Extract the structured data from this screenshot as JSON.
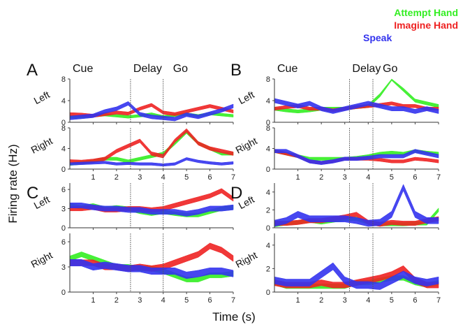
{
  "figure": {
    "xlabel": "Time (s)",
    "ylabel": "Firing rate (Hz)"
  },
  "legend": [
    {
      "label": "Attempt Hand",
      "color": "#33ee22"
    },
    {
      "label": "Imagine Hand",
      "color": "#ee2222"
    },
    {
      "label": "Speak",
      "color": "#3333ee"
    }
  ],
  "phase_labels": [
    "Cue",
    "Delay",
    "Go"
  ],
  "chart_data": [
    {
      "panel": "A",
      "type": "area",
      "xlim": [
        0,
        7
      ],
      "xticks": [
        1,
        2,
        3,
        4,
        5,
        6,
        7
      ],
      "phase_boundaries": [
        2.6,
        4
      ],
      "x": [
        0.0,
        0.5,
        1.0,
        1.5,
        2.0,
        2.5,
        3.0,
        3.5,
        4.0,
        4.5,
        5.0,
        5.5,
        6.0,
        6.5,
        7.0
      ],
      "rows": [
        {
          "label": "Left",
          "ylim": [
            0,
            8
          ],
          "yticks": [
            0,
            4,
            8
          ],
          "series": [
            {
              "name": "Attempt Hand",
              "values": [
                1,
                1,
                1.2,
                1.4,
                1.2,
                1,
                1.2,
                1.5,
                1,
                1.3,
                1.5,
                1.2,
                1.6,
                1.4,
                1.2
              ],
              "band": 0.5
            },
            {
              "name": "Imagine Hand",
              "values": [
                1.5,
                1.4,
                1.2,
                1.5,
                1.8,
                1.6,
                2.5,
                3.2,
                1.8,
                1.5,
                2,
                2.5,
                3,
                2.5,
                2
              ],
              "band": 0.6
            },
            {
              "name": "Speak",
              "values": [
                0.8,
                1,
                1.2,
                2,
                2.5,
                3.5,
                1.5,
                1,
                0.8,
                0.6,
                1.4,
                1,
                1.6,
                2.2,
                3
              ],
              "band": 0.7
            }
          ]
        },
        {
          "label": "Right",
          "ylim": [
            0,
            8
          ],
          "yticks": [
            0,
            4,
            8
          ],
          "series": [
            {
              "name": "Attempt Hand",
              "values": [
                1,
                1.2,
                1.5,
                2,
                2,
                1.5,
                2,
                2.5,
                3,
                5,
                7.2,
                5,
                4,
                3,
                3
              ],
              "band": 0.6
            },
            {
              "name": "Imagine Hand",
              "values": [
                1.5,
                1.4,
                1.6,
                2,
                3.5,
                4.5,
                5.5,
                3,
                2.5,
                5.5,
                7.5,
                5,
                4,
                3.5,
                3
              ],
              "band": 0.7
            },
            {
              "name": "Speak",
              "values": [
                1,
                1.1,
                1.2,
                1.3,
                1,
                1.1,
                1,
                1,
                0.8,
                1,
                2,
                1.5,
                1.2,
                1,
                1.2
              ],
              "band": 0.5
            }
          ]
        }
      ]
    },
    {
      "panel": "B",
      "type": "area",
      "xlim": [
        0,
        7
      ],
      "xticks": [
        1,
        2,
        3,
        4,
        5,
        6,
        7
      ],
      "phase_boundaries": [
        3.2,
        4.2
      ],
      "x": [
        0.0,
        0.5,
        1.0,
        1.5,
        2.0,
        2.5,
        3.0,
        3.5,
        4.0,
        4.5,
        5.0,
        5.5,
        6.0,
        6.5,
        7.0
      ],
      "rows": [
        {
          "label": "Left",
          "ylim": [
            0,
            8
          ],
          "yticks": [
            0,
            4,
            8
          ],
          "series": [
            {
              "name": "Attempt Hand",
              "values": [
                2.5,
                2.2,
                2.0,
                2.2,
                2.5,
                2.5,
                2.5,
                2.8,
                3,
                5,
                8,
                6,
                4,
                3.5,
                3
              ],
              "band": 0.6
            },
            {
              "name": "Imagine Hand",
              "values": [
                2.5,
                2.8,
                3,
                2.5,
                2.5,
                2.2,
                2.5,
                2.8,
                3,
                3.2,
                3.5,
                3,
                3,
                2.5,
                2.5
              ],
              "band": 0.6
            },
            {
              "name": "Speak",
              "values": [
                4,
                3.5,
                3,
                3.5,
                2.5,
                2,
                2.5,
                3,
                3.5,
                3,
                2.5,
                2.5,
                2,
                2.5,
                2
              ],
              "band": 0.8
            }
          ]
        },
        {
          "label": "Right",
          "ylim": [
            0,
            8
          ],
          "yticks": [
            0,
            4,
            8
          ],
          "series": [
            {
              "name": "Attempt Hand",
              "values": [
                3.5,
                3,
                2.5,
                2,
                2,
                2,
                2,
                2.2,
                2.5,
                3,
                3.2,
                3,
                3.5,
                3.2,
                3
              ],
              "band": 0.6
            },
            {
              "name": "Imagine Hand",
              "values": [
                3.5,
                3,
                2.5,
                1.5,
                1.2,
                1.5,
                2,
                2,
                2,
                1.8,
                1.5,
                1.5,
                2,
                1.8,
                1.5
              ],
              "band": 0.6
            },
            {
              "name": "Speak",
              "values": [
                3.5,
                3.5,
                2.5,
                1.5,
                1.2,
                1.5,
                2,
                2,
                2.2,
                2.5,
                2.5,
                2.5,
                3.5,
                3,
                2.5
              ],
              "band": 0.7
            }
          ]
        }
      ]
    },
    {
      "panel": "C",
      "type": "area",
      "xlim": [
        0,
        7
      ],
      "xticks": [
        1,
        2,
        3,
        4,
        5,
        6,
        7
      ],
      "phase_boundaries": [
        2.6,
        4
      ],
      "x": [
        0.0,
        0.5,
        1.0,
        1.5,
        2.0,
        2.5,
        3.0,
        3.5,
        4.0,
        4.5,
        5.0,
        5.5,
        6.0,
        6.5,
        7.0
      ],
      "rows": [
        {
          "label": "Left",
          "ylim": [
            0,
            7
          ],
          "yticks": [
            0,
            3,
            6
          ],
          "series": [
            {
              "name": "Attempt Hand",
              "values": [
                3.5,
                3.2,
                3.5,
                3.0,
                3.2,
                3,
                2.5,
                2.2,
                2.5,
                2.2,
                2,
                2,
                2.5,
                3,
                3.2
              ],
              "band": 0.6
            },
            {
              "name": "Imagine Hand",
              "values": [
                3,
                3,
                3.2,
                2.8,
                2.8,
                3,
                3,
                2.8,
                3,
                3.5,
                4,
                4.5,
                5,
                5.8,
                4.5
              ],
              "band": 0.7
            },
            {
              "name": "Speak",
              "values": [
                3.5,
                3.5,
                3.2,
                3,
                3,
                2.8,
                2.8,
                2.5,
                2.5,
                2.5,
                2.2,
                2.5,
                3,
                3,
                3.2
              ],
              "band": 0.8
            }
          ]
        },
        {
          "label": "Right",
          "ylim": [
            0,
            7
          ],
          "yticks": [
            0,
            3,
            6
          ],
          "series": [
            {
              "name": "Attempt Hand",
              "values": [
                4,
                4.5,
                4,
                3.5,
                3,
                3,
                2.8,
                2.8,
                2.5,
                2,
                1.5,
                1.5,
                2,
                2,
                2.2
              ],
              "band": 0.6
            },
            {
              "name": "Imagine Hand",
              "values": [
                3.5,
                3.5,
                3.5,
                3,
                3,
                2.8,
                3,
                2.8,
                3,
                3.5,
                4,
                4.5,
                5.5,
                5,
                4
              ],
              "band": 0.7
            },
            {
              "name": "Speak",
              "values": [
                3.5,
                3.5,
                3,
                3.2,
                3,
                2.8,
                2.8,
                2.5,
                2.5,
                2.5,
                2,
                2.2,
                2.5,
                2.5,
                2.2
              ],
              "band": 0.8
            }
          ]
        }
      ]
    },
    {
      "panel": "D",
      "type": "area",
      "xlim": [
        0,
        7
      ],
      "xticks": [
        1,
        2,
        3,
        4,
        5,
        6,
        7
      ],
      "phase_boundaries": [
        3.2,
        4.2
      ],
      "x": [
        0.0,
        0.5,
        1.0,
        1.5,
        2.0,
        2.5,
        3.0,
        3.5,
        4.0,
        4.5,
        5.0,
        5.5,
        6.0,
        6.5,
        7.0
      ],
      "rows": [
        {
          "label": "Left",
          "ylim": [
            0,
            5
          ],
          "yticks": [
            0,
            2,
            4
          ],
          "series": [
            {
              "name": "Attempt Hand",
              "values": [
                0.3,
                0.5,
                0.6,
                0.8,
                0.6,
                0.8,
                1,
                1,
                0.6,
                0.4,
                0.4,
                0.4,
                0.5,
                0.5,
                2
              ],
              "band": 0.4
            },
            {
              "name": "Imagine Hand",
              "values": [
                0.5,
                0.5,
                0.6,
                0.8,
                0.8,
                1,
                1.2,
                1.5,
                0.6,
                0.4,
                0.6,
                0.5,
                0.5,
                0.8,
                1
              ],
              "band": 0.5
            },
            {
              "name": "Speak",
              "values": [
                0.5,
                0.8,
                1.5,
                1,
                1,
                1,
                1,
                0.8,
                0.5,
                0.6,
                1.5,
                4.5,
                1.5,
                0.8,
                0.8
              ],
              "band": 0.7
            }
          ]
        },
        {
          "label": "Right",
          "ylim": [
            0,
            5
          ],
          "yticks": [
            0,
            2,
            4
          ],
          "series": [
            {
              "name": "Attempt Hand",
              "values": [
                0.8,
                0.5,
                0.5,
                0.5,
                0.5,
                0.5,
                0.5,
                0.8,
                0.8,
                1,
                1.2,
                1.2,
                0.8,
                0.6,
                0.8
              ],
              "band": 0.4
            },
            {
              "name": "Imagine Hand",
              "values": [
                0.8,
                0.6,
                0.6,
                0.6,
                0.8,
                0.6,
                0.6,
                0.8,
                1,
                1.2,
                1.5,
                2,
                1,
                0.6,
                0.6
              ],
              "band": 0.5
            },
            {
              "name": "Speak",
              "values": [
                1,
                0.8,
                0.8,
                0.8,
                1.5,
                2.2,
                1,
                0.6,
                0.6,
                0.5,
                1,
                1.5,
                1,
                0.8,
                1
              ],
              "band": 0.6
            }
          ]
        }
      ]
    }
  ]
}
